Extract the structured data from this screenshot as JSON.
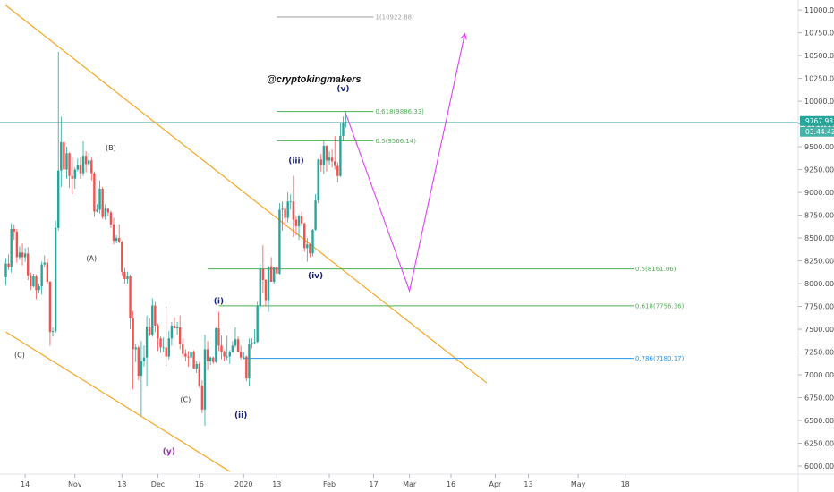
{
  "chart_data": {
    "type": "candlestick",
    "handle": "@cryptokingmakers",
    "y_axis": {
      "ticks": [
        "11000.00",
        "10750.00",
        "10500.00",
        "10250.00",
        "10000.00",
        "9750.00",
        "9500.00",
        "9250.00",
        "9000.00",
        "8750.00",
        "8500.00",
        "8250.00",
        "8000.00",
        "7750.00",
        "7500.00",
        "7250.00",
        "7000.00",
        "6750.00",
        "6500.00",
        "6250.00",
        "6000.00"
      ],
      "range": [
        5950,
        11100
      ]
    },
    "x_axis": {
      "ticks": [
        "14",
        "Nov",
        "18",
        "Dec",
        "16",
        "2020",
        "13",
        "Feb",
        "17",
        "Mar",
        "16",
        "Apr",
        "13",
        "May",
        "18"
      ]
    },
    "price_tag": {
      "price": "9767.93",
      "time": "03:44:42",
      "value": 9767.93,
      "color": "#26a69a"
    },
    "fib_levels": [
      {
        "label": "1(10922.88)",
        "value": 10922.88,
        "color": "#9e9e9e"
      },
      {
        "label": "0.618(9886.33)",
        "value": 9886.33,
        "color": "#4caf50"
      },
      {
        "label": "0.5(9566.14)",
        "value": 9566.14,
        "color": "#4caf50"
      },
      {
        "label": "0.5(8161.06)",
        "value": 8161.06,
        "color": "#4caf50"
      },
      {
        "label": "0.618(7756.36)",
        "value": 7756.36,
        "color": "#4caf50"
      },
      {
        "label": "0.786(7180.17)",
        "value": 7180.17,
        "color": "#2196f3"
      }
    ],
    "wave_labels": [
      {
        "text": "(v)",
        "date": "2020-02-06",
        "price": 10110,
        "color": "#1a237e"
      },
      {
        "text": "(iii)",
        "date": "2020-01-20",
        "price": 9320,
        "color": "#1a237e"
      },
      {
        "text": "(iv)",
        "date": "2020-01-27",
        "price": 8060,
        "color": "#1a237e"
      },
      {
        "text": "(i)",
        "date": "2019-12-23",
        "price": 7780,
        "color": "#1a237e"
      },
      {
        "text": "(ii)",
        "date": "2019-12-31",
        "price": 6530,
        "color": "#1a237e"
      },
      {
        "text": "(B)",
        "date": "2019-11-14",
        "price": 9460,
        "color": "#333333"
      },
      {
        "text": "(A)",
        "date": "2019-11-07",
        "price": 8250,
        "color": "#333333"
      },
      {
        "text": "(C)",
        "date": "2019-10-12",
        "price": 7190,
        "color": "#333333"
      },
      {
        "text": "(C)",
        "date": "2019-12-11",
        "price": 6700,
        "color": "#333333"
      },
      {
        "text": "(y)",
        "date": "2019-12-05",
        "price": 6130,
        "color": "#9c27b0"
      }
    ],
    "channel_lines": [
      {
        "from": [
          "2019-10-07",
          11050
        ],
        "to": [
          "2020-03-29",
          6910
        ],
        "color": "#f5a623"
      },
      {
        "from": [
          "2019-10-07",
          7470
        ],
        "to": [
          "2019-12-27",
          5940
        ],
        "color": "#f5a623"
      }
    ],
    "projection": {
      "color": "#e040fb",
      "points": [
        [
          "2020-02-07",
          9860
        ],
        [
          "2020-03-01",
          7920
        ],
        [
          "2020-03-21",
          10740
        ]
      ]
    },
    "candles": [
      [
        "2019-10-07",
        8070,
        8280,
        7980,
        8220
      ],
      [
        "2019-10-08",
        8220,
        8320,
        8150,
        8180
      ],
      [
        "2019-10-09",
        8180,
        8660,
        8120,
        8600
      ],
      [
        "2019-10-10",
        8600,
        8650,
        8480,
        8570
      ],
      [
        "2019-10-11",
        8570,
        8600,
        8230,
        8290
      ],
      [
        "2019-10-12",
        8290,
        8410,
        8260,
        8340
      ],
      [
        "2019-10-13",
        8340,
        8440,
        8200,
        8290
      ],
      [
        "2019-10-14",
        8290,
        8390,
        8240,
        8330
      ],
      [
        "2019-10-15",
        8330,
        8400,
        8040,
        8090
      ],
      [
        "2019-10-16",
        8090,
        8120,
        7930,
        7970
      ],
      [
        "2019-10-17",
        7970,
        8110,
        7960,
        8080
      ],
      [
        "2019-10-18",
        8080,
        8100,
        7830,
        7930
      ],
      [
        "2019-10-19",
        7930,
        8000,
        7890,
        7970
      ],
      [
        "2019-10-20",
        7970,
        8240,
        7880,
        8210
      ],
      [
        "2019-10-21",
        8210,
        8310,
        8180,
        8230
      ],
      [
        "2019-10-22",
        8230,
        8280,
        7990,
        8020
      ],
      [
        "2019-10-23",
        8020,
        8030,
        7320,
        7470
      ],
      [
        "2019-10-24",
        7470,
        7520,
        7420,
        7480
      ],
      [
        "2019-10-25",
        7480,
        8690,
        7460,
        8610
      ],
      [
        "2019-10-26",
        8610,
        10540,
        8580,
        9240
      ],
      [
        "2019-10-27",
        9240,
        9830,
        9060,
        9550
      ],
      [
        "2019-10-28",
        9550,
        9860,
        9210,
        9250
      ],
      [
        "2019-10-29",
        9250,
        9500,
        9150,
        9430
      ],
      [
        "2019-10-30",
        9430,
        9440,
        9050,
        9180
      ],
      [
        "2019-10-31",
        9180,
        9380,
        8980,
        9150
      ],
      [
        "2019-11-01",
        9150,
        9270,
        9040,
        9250
      ],
      [
        "2019-11-02",
        9250,
        9370,
        9230,
        9300
      ],
      [
        "2019-11-03",
        9300,
        9380,
        9150,
        9210
      ],
      [
        "2019-11-04",
        9210,
        9560,
        9180,
        9400
      ],
      [
        "2019-11-05",
        9400,
        9450,
        9220,
        9310
      ],
      [
        "2019-11-06",
        9310,
        9430,
        9280,
        9350
      ],
      [
        "2019-11-07",
        9350,
        9380,
        9130,
        9210
      ],
      [
        "2019-11-08",
        9210,
        9230,
        8730,
        8790
      ],
      [
        "2019-11-09",
        8790,
        8870,
        8780,
        8810
      ],
      [
        "2019-11-10",
        8810,
        9130,
        8770,
        9040
      ],
      [
        "2019-11-11",
        9040,
        9060,
        8710,
        8730
      ],
      [
        "2019-11-12",
        8730,
        8870,
        8700,
        8820
      ],
      [
        "2019-11-13",
        8820,
        8830,
        8740,
        8780
      ],
      [
        "2019-11-14",
        8780,
        8800,
        8610,
        8650
      ],
      [
        "2019-11-15",
        8650,
        8720,
        8430,
        8470
      ],
      [
        "2019-11-16",
        8470,
        8530,
        8440,
        8500
      ],
      [
        "2019-11-17",
        8500,
        8650,
        8440,
        8460
      ],
      [
        "2019-11-18",
        8460,
        8470,
        8090,
        8130
      ],
      [
        "2019-11-19",
        8130,
        8170,
        8000,
        8050
      ],
      [
        "2019-11-20",
        8050,
        8130,
        8000,
        8080
      ],
      [
        "2019-11-21",
        8080,
        8100,
        7500,
        7620
      ],
      [
        "2019-11-22",
        7620,
        7700,
        6840,
        7280
      ],
      [
        "2019-11-23",
        7280,
        7340,
        7140,
        7300
      ],
      [
        "2019-11-24",
        7300,
        7320,
        6940,
        6990
      ],
      [
        "2019-11-25",
        6990,
        7370,
        6550,
        7150
      ],
      [
        "2019-11-26",
        7150,
        7320,
        7090,
        7190
      ],
      [
        "2019-11-27",
        7190,
        7650,
        6870,
        7530
      ],
      [
        "2019-11-28",
        7530,
        7620,
        7420,
        7440
      ],
      [
        "2019-11-29",
        7440,
        7840,
        7420,
        7760
      ],
      [
        "2019-11-30",
        7760,
        7800,
        7470,
        7540
      ],
      [
        "2019-12-01",
        7540,
        7560,
        7260,
        7400
      ],
      [
        "2019-12-02",
        7400,
        7420,
        7240,
        7300
      ],
      [
        "2019-12-03",
        7300,
        7410,
        7250,
        7300
      ],
      [
        "2019-12-04",
        7300,
        7750,
        7100,
        7200
      ],
      [
        "2019-12-05",
        7200,
        7480,
        7170,
        7400
      ],
      [
        "2019-12-06",
        7400,
        7580,
        7320,
        7540
      ],
      [
        "2019-12-07",
        7540,
        7630,
        7510,
        7510
      ],
      [
        "2019-12-08",
        7510,
        7580,
        7440,
        7520
      ],
      [
        "2019-12-09",
        7520,
        7650,
        7280,
        7340
      ],
      [
        "2019-12-10",
        7340,
        7400,
        7200,
        7230
      ],
      [
        "2019-12-11",
        7230,
        7280,
        7150,
        7200
      ],
      [
        "2019-12-12",
        7200,
        7260,
        7090,
        7190
      ],
      [
        "2019-12-13",
        7190,
        7300,
        7180,
        7250
      ],
      [
        "2019-12-14",
        7250,
        7270,
        7070,
        7070
      ],
      [
        "2019-12-15",
        7070,
        7150,
        7020,
        7120
      ],
      [
        "2019-12-16",
        7120,
        7140,
        6860,
        6880
      ],
      [
        "2019-12-17",
        6880,
        6940,
        6580,
        6620
      ],
      [
        "2019-12-18",
        6620,
        7440,
        6440,
        7280
      ],
      [
        "2019-12-19",
        7280,
        7370,
        7050,
        7150
      ],
      [
        "2019-12-20",
        7150,
        7200,
        7110,
        7190
      ],
      [
        "2019-12-21",
        7190,
        7200,
        7120,
        7140
      ],
      [
        "2019-12-22",
        7140,
        7520,
        7130,
        7510
      ],
      [
        "2019-12-23",
        7510,
        7690,
        7260,
        7320
      ],
      [
        "2019-12-24",
        7320,
        7430,
        7170,
        7250
      ],
      [
        "2019-12-25",
        7250,
        7270,
        7150,
        7200
      ],
      [
        "2019-12-26",
        7200,
        7430,
        7160,
        7200
      ],
      [
        "2019-12-27",
        7200,
        7270,
        7120,
        7250
      ],
      [
        "2019-12-28",
        7250,
        7370,
        7240,
        7320
      ],
      [
        "2019-12-29",
        7320,
        7520,
        7300,
        7390
      ],
      [
        "2019-12-30",
        7390,
        7420,
        7250,
        7250
      ],
      [
        "2019-12-31",
        7250,
        7320,
        7170,
        7190
      ],
      [
        "2020-01-01",
        7190,
        7250,
        7170,
        7200
      ],
      [
        "2020-01-02",
        7200,
        7210,
        6930,
        6960
      ],
      [
        "2020-01-03",
        6960,
        7400,
        6870,
        7340
      ],
      [
        "2020-01-04",
        7340,
        7400,
        7290,
        7350
      ],
      [
        "2020-01-05",
        7350,
        7500,
        7340,
        7360
      ],
      [
        "2020-01-06",
        7360,
        7800,
        7350,
        7760
      ],
      [
        "2020-01-07",
        7760,
        8210,
        7730,
        8160
      ],
      [
        "2020-01-08",
        8160,
        8420,
        7890,
        8040
      ],
      [
        "2020-01-09",
        8040,
        8050,
        7750,
        7820
      ],
      [
        "2020-01-10",
        7820,
        8180,
        7690,
        8190
      ],
      [
        "2020-01-11",
        8190,
        8290,
        8040,
        8020
      ],
      [
        "2020-01-12",
        8020,
        8180,
        8000,
        8180
      ],
      [
        "2020-01-13",
        8180,
        8190,
        8050,
        8110
      ],
      [
        "2020-01-14",
        8110,
        8880,
        8100,
        8810
      ],
      [
        "2020-01-15",
        8810,
        8900,
        8580,
        8820
      ],
      [
        "2020-01-16",
        8820,
        8850,
        8620,
        8720
      ],
      [
        "2020-01-17",
        8720,
        9000,
        8670,
        8900
      ],
      [
        "2020-01-18",
        8900,
        8980,
        8810,
        8900
      ],
      [
        "2020-01-19",
        8900,
        9180,
        8510,
        8700
      ],
      [
        "2020-01-20",
        8700,
        8740,
        8530,
        8630
      ],
      [
        "2020-01-21",
        8630,
        8760,
        8480,
        8740
      ],
      [
        "2020-01-22",
        8740,
        8790,
        8630,
        8660
      ],
      [
        "2020-01-23",
        8660,
        8670,
        8350,
        8390
      ],
      [
        "2020-01-24",
        8390,
        8500,
        8240,
        8430
      ],
      [
        "2020-01-25",
        8430,
        8440,
        8290,
        8330
      ],
      [
        "2020-01-26",
        8330,
        8600,
        8300,
        8590
      ],
      [
        "2020-01-27",
        8590,
        8980,
        8580,
        8910
      ],
      [
        "2020-01-28",
        8910,
        9370,
        8880,
        9360
      ],
      [
        "2020-01-29",
        9360,
        9420,
        9230,
        9300
      ],
      [
        "2020-01-30",
        9300,
        9560,
        9200,
        9510
      ],
      [
        "2020-01-31",
        9510,
        9520,
        9230,
        9350
      ],
      [
        "2020-02-01",
        9350,
        9450,
        9300,
        9380
      ],
      [
        "2020-02-02",
        9380,
        9470,
        9270,
        9340
      ],
      [
        "2020-02-03",
        9340,
        9620,
        9250,
        9290
      ],
      [
        "2020-02-04",
        9290,
        9330,
        9110,
        9180
      ],
      [
        "2020-02-05",
        9180,
        9760,
        9170,
        9620
      ],
      [
        "2020-02-06",
        9620,
        9830,
        9560,
        9760
      ],
      [
        "2020-02-07",
        9760,
        9880,
        9710,
        9770
      ]
    ]
  }
}
